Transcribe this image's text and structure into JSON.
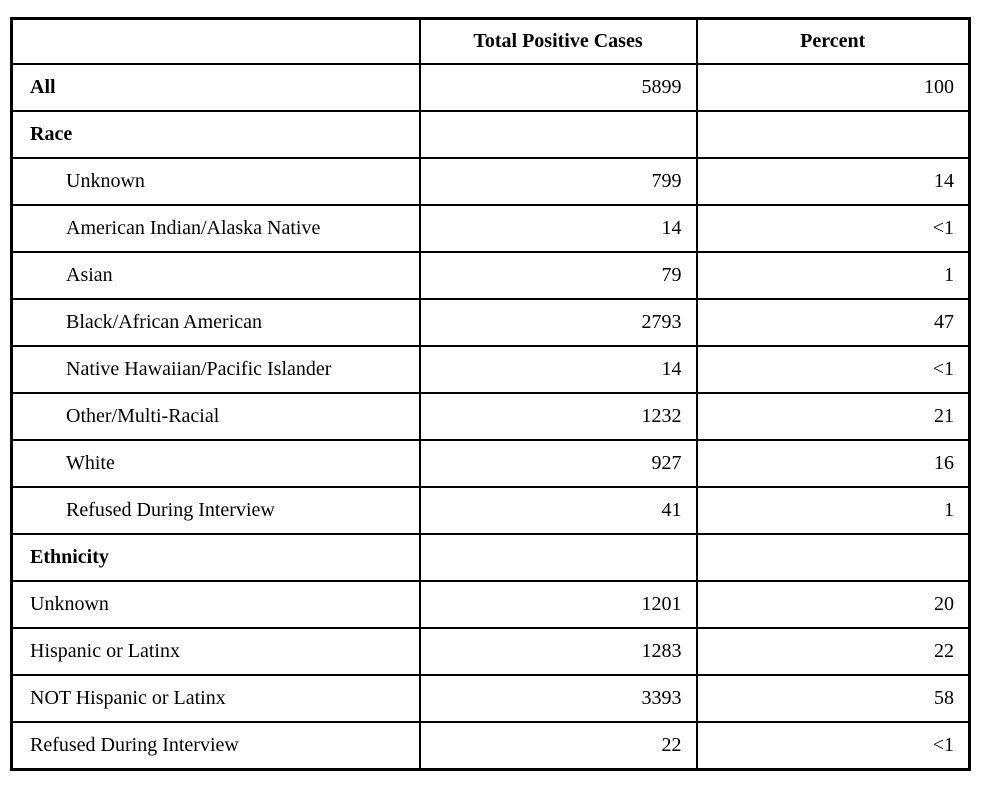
{
  "table": {
    "columns": [
      {
        "label": ""
      },
      {
        "label": "Total Positive Cases"
      },
      {
        "label": "Percent"
      }
    ],
    "rows": [
      {
        "label": "All",
        "cases": "5899",
        "percent": "100",
        "kind": "total"
      },
      {
        "label": "Race",
        "cases": "",
        "percent": "",
        "kind": "section"
      },
      {
        "label": "Unknown",
        "cases": "799",
        "percent": "14",
        "kind": "indent"
      },
      {
        "label": "American Indian/Alaska Native",
        "cases": "14",
        "percent": "<1",
        "kind": "indent"
      },
      {
        "label": "Asian",
        "cases": "79",
        "percent": "1",
        "kind": "indent"
      },
      {
        "label": "Black/African American",
        "cases": "2793",
        "percent": "47",
        "kind": "indent"
      },
      {
        "label": "Native Hawaiian/Pacific Islander",
        "cases": "14",
        "percent": "<1",
        "kind": "indent"
      },
      {
        "label": "Other/Multi-Racial",
        "cases": "1232",
        "percent": "21",
        "kind": "indent"
      },
      {
        "label": "White",
        "cases": "927",
        "percent": "16",
        "kind": "indent"
      },
      {
        "label": "Refused During Interview",
        "cases": "41",
        "percent": "1",
        "kind": "indent"
      },
      {
        "label": "Ethnicity",
        "cases": "",
        "percent": "",
        "kind": "section"
      },
      {
        "label": "Unknown",
        "cases": "1201",
        "percent": "20",
        "kind": "plain"
      },
      {
        "label": "Hispanic or Latinx",
        "cases": "1283",
        "percent": "22",
        "kind": "plain"
      },
      {
        "label": "NOT Hispanic or Latinx",
        "cases": "3393",
        "percent": "58",
        "kind": "plain"
      },
      {
        "label": "Refused During Interview",
        "cases": "22",
        "percent": "<1",
        "kind": "plain"
      }
    ]
  }
}
